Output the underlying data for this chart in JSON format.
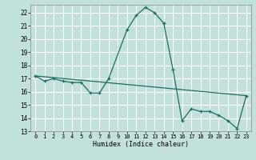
{
  "xlabel": "Humidex (Indice chaleur)",
  "bg_color": "#c2e0dc",
  "grid_color": "#ffffff",
  "line_color": "#1a6e62",
  "xlim": [
    -0.5,
    23.5
  ],
  "ylim": [
    13,
    22.6
  ],
  "yticks": [
    13,
    14,
    15,
    16,
    17,
    18,
    19,
    20,
    21,
    22
  ],
  "xticks": [
    0,
    1,
    2,
    3,
    4,
    5,
    6,
    7,
    8,
    9,
    10,
    11,
    12,
    13,
    14,
    15,
    16,
    17,
    18,
    19,
    20,
    21,
    22,
    23
  ],
  "line1_x": [
    0,
    1,
    2,
    3,
    4,
    5,
    6,
    7,
    8,
    10,
    11,
    12,
    13,
    14,
    15,
    16,
    17,
    18,
    19,
    20,
    21,
    22,
    23
  ],
  "line1_y": [
    17.2,
    16.8,
    17.0,
    16.8,
    16.7,
    16.7,
    15.9,
    15.9,
    17.0,
    20.7,
    21.8,
    22.4,
    22.0,
    21.2,
    17.7,
    13.8,
    14.7,
    14.5,
    14.5,
    14.2,
    13.8,
    13.2,
    15.7
  ],
  "line2_x": [
    0,
    23
  ],
  "line2_y": [
    17.2,
    15.7
  ],
  "marker": "+"
}
